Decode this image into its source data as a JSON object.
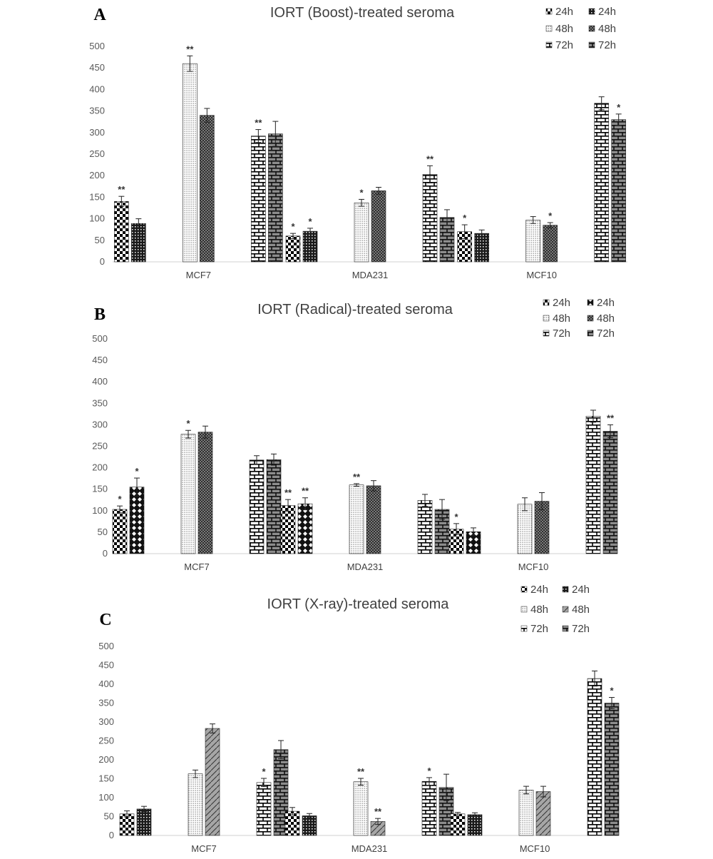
{
  "chart_data": [
    {
      "type": "bar",
      "panel_letter": "A",
      "title": "IORT (Boost)-treated seroma",
      "categories": [
        "MCF7",
        "MDA231",
        "MCF10"
      ],
      "ylim": [
        0,
        500
      ],
      "yticks": [
        "0",
        "50",
        "100",
        "150",
        "200",
        "250",
        "300",
        "350",
        "400",
        "450",
        "500"
      ],
      "grid": false,
      "legend_position": "top-right",
      "series": [
        {
          "name": "24h",
          "pattern": "check",
          "values": [
            140,
            60,
            70
          ],
          "errors": [
            12,
            6,
            16
          ],
          "annotations": [
            "**",
            "*",
            "*"
          ]
        },
        {
          "name": "24h",
          "pattern": "dots-dark",
          "values": [
            89,
            71,
            66
          ],
          "errors": [
            11,
            7,
            8
          ],
          "annotations": [
            "",
            "*",
            ""
          ]
        },
        {
          "name": "48h",
          "pattern": "dots-light",
          "values": [
            460,
            137,
            97
          ],
          "errors": [
            18,
            8,
            8
          ],
          "annotations": [
            "**",
            "*",
            ""
          ]
        },
        {
          "name": "48h",
          "pattern": "grid-dark",
          "values": [
            340,
            165,
            85
          ],
          "errors": [
            16,
            8,
            6
          ],
          "annotations": [
            "",
            "",
            "*"
          ]
        },
        {
          "name": "72h",
          "pattern": "brick-white",
          "values": [
            292,
            203,
            368
          ],
          "errors": [
            15,
            20,
            15
          ],
          "annotations": [
            "**",
            "**",
            ""
          ]
        },
        {
          "name": "72h",
          "pattern": "brick-gray",
          "values": [
            297,
            103,
            330
          ],
          "errors": [
            29,
            18,
            13
          ],
          "annotations": [
            "",
            "",
            "*"
          ]
        }
      ]
    },
    {
      "type": "bar",
      "panel_letter": "B",
      "title": "IORT (Radical)-treated seroma",
      "categories": [
        "MCF7",
        "MDA231",
        "MCF10"
      ],
      "ylim": [
        0,
        500
      ],
      "yticks": [
        "0",
        "50",
        "100",
        "150",
        "200",
        "250",
        "300",
        "350",
        "400",
        "450",
        "500"
      ],
      "grid": false,
      "legend_position": "top-right",
      "series": [
        {
          "name": "24h",
          "pattern": "check",
          "values": [
            103,
            112,
            57
          ],
          "errors": [
            8,
            14,
            13
          ],
          "annotations": [
            "*",
            "**",
            "*"
          ]
        },
        {
          "name": "24h",
          "pattern": "diamond-dark",
          "values": [
            155,
            116,
            51
          ],
          "errors": [
            21,
            14,
            9
          ],
          "annotations": [
            "*",
            "**",
            ""
          ]
        },
        {
          "name": "48h",
          "pattern": "dots-light",
          "values": [
            278,
            160,
            115
          ],
          "errors": [
            9,
            3,
            15
          ],
          "annotations": [
            "*",
            "**",
            ""
          ]
        },
        {
          "name": "48h",
          "pattern": "grid-dark",
          "values": [
            283,
            158,
            122
          ],
          "errors": [
            14,
            12,
            20
          ],
          "annotations": [
            "",
            "",
            ""
          ]
        },
        {
          "name": "72h",
          "pattern": "brick-white",
          "values": [
            218,
            124,
            320
          ],
          "errors": [
            10,
            14,
            14
          ],
          "annotations": [
            "",
            "",
            ""
          ]
        },
        {
          "name": "72h",
          "pattern": "brick-gray",
          "values": [
            219,
            103,
            285
          ],
          "errors": [
            13,
            23,
            15
          ],
          "annotations": [
            "",
            "",
            "**"
          ]
        }
      ]
    },
    {
      "type": "bar",
      "panel_letter": "C",
      "title": "IORT (X-ray)-treated seroma",
      "categories": [
        "MCF7",
        "MDA231",
        "MCF10"
      ],
      "ylim": [
        0,
        500
      ],
      "yticks": [
        "0",
        "50",
        "100",
        "150",
        "200",
        "250",
        "300",
        "350",
        "400",
        "450",
        "500"
      ],
      "grid": false,
      "legend_position": "top-right",
      "series": [
        {
          "name": "24h",
          "pattern": "check",
          "values": [
            57,
            64,
            57
          ],
          "errors": [
            8,
            10,
            4
          ],
          "annotations": [
            "",
            "",
            ""
          ]
        },
        {
          "name": "24h",
          "pattern": "dots-dark",
          "values": [
            70,
            52,
            55
          ],
          "errors": [
            7,
            6,
            5
          ],
          "annotations": [
            "",
            "",
            ""
          ]
        },
        {
          "name": "48h",
          "pattern": "dots-light",
          "values": [
            163,
            142,
            120
          ],
          "errors": [
            10,
            9,
            10
          ],
          "annotations": [
            "",
            "**",
            ""
          ]
        },
        {
          "name": "48h",
          "pattern": "diag-gray",
          "values": [
            283,
            37,
            116
          ],
          "errors": [
            12,
            8,
            14
          ],
          "annotations": [
            "",
            "**",
            ""
          ]
        },
        {
          "name": "72h",
          "pattern": "brick-white",
          "values": [
            140,
            143,
            415
          ],
          "errors": [
            11,
            10,
            20
          ],
          "annotations": [
            "*",
            "*",
            ""
          ]
        },
        {
          "name": "72h",
          "pattern": "brick-gray",
          "values": [
            227,
            127,
            350
          ],
          "errors": [
            24,
            35,
            15
          ],
          "annotations": [
            "",
            "",
            "*"
          ]
        }
      ]
    }
  ]
}
